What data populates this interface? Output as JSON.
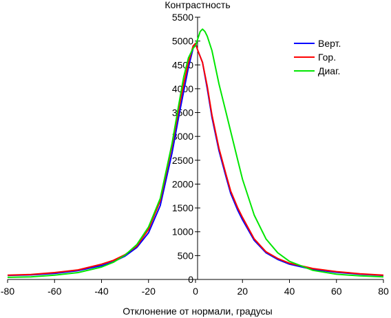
{
  "chart_data": {
    "type": "line",
    "ylabel": "Контрастность",
    "xlabel": "Отклонение от нормали, градусы",
    "xlim": [
      -80,
      80
    ],
    "ylim": [
      0,
      5500
    ],
    "x_ticks": [
      -80,
      -60,
      -40,
      -20,
      0,
      20,
      40,
      60,
      80
    ],
    "y_ticks": [
      0,
      500,
      1000,
      1500,
      2000,
      2500,
      3000,
      3500,
      4000,
      4500,
      5000,
      5500
    ],
    "grid": false,
    "legend_position": "top-right",
    "series": [
      {
        "name": "Верт.",
        "color": "#0000ff",
        "x": [
          -80,
          -70,
          -60,
          -50,
          -40,
          -35,
          -30,
          -25,
          -20,
          -15,
          -10,
          -7,
          -5,
          -3,
          -1,
          0,
          1,
          3,
          5,
          7,
          10,
          13,
          15,
          18,
          20,
          25,
          30,
          35,
          40,
          50,
          60,
          70,
          80
        ],
        "y": [
          85,
          95,
          125,
          185,
          290,
          370,
          490,
          670,
          980,
          1550,
          2650,
          3450,
          3950,
          4450,
          4850,
          4950,
          4800,
          4550,
          4000,
          3400,
          2700,
          2150,
          1800,
          1450,
          1250,
          820,
          560,
          420,
          320,
          210,
          150,
          110,
          85
        ]
      },
      {
        "name": "Гор.",
        "color": "#ff0000",
        "x": [
          -80,
          -70,
          -60,
          -50,
          -40,
          -35,
          -30,
          -25,
          -20,
          -15,
          -10,
          -7,
          -5,
          -3,
          -1,
          0,
          1,
          3,
          5,
          7,
          10,
          13,
          15,
          18,
          20,
          25,
          30,
          35,
          40,
          50,
          60,
          70,
          80
        ],
        "y": [
          90,
          105,
          145,
          200,
          320,
          400,
          520,
          700,
          1050,
          1650,
          2800,
          3600,
          4100,
          4550,
          4900,
          4950,
          4800,
          4550,
          4050,
          3450,
          2750,
          2200,
          1850,
          1500,
          1300,
          850,
          580,
          440,
          340,
          230,
          165,
          120,
          90
        ]
      },
      {
        "name": "Диаг.",
        "color": "#00e600",
        "x": [
          -80,
          -70,
          -60,
          -50,
          -40,
          -35,
          -30,
          -25,
          -20,
          -15,
          -10,
          -7,
          -5,
          -3,
          -1,
          0,
          1,
          2,
          3,
          4,
          5,
          7,
          10,
          13,
          15,
          18,
          20,
          25,
          30,
          35,
          40,
          50,
          60,
          70,
          80
        ],
        "y": [
          45,
          55,
          90,
          145,
          260,
          360,
          510,
          730,
          1100,
          1700,
          2850,
          3700,
          4250,
          4650,
          4850,
          4900,
          5050,
          5200,
          5250,
          5200,
          5100,
          4800,
          4100,
          3500,
          3100,
          2500,
          2100,
          1350,
          850,
          560,
          380,
          190,
          110,
          75,
          55
        ]
      }
    ]
  }
}
